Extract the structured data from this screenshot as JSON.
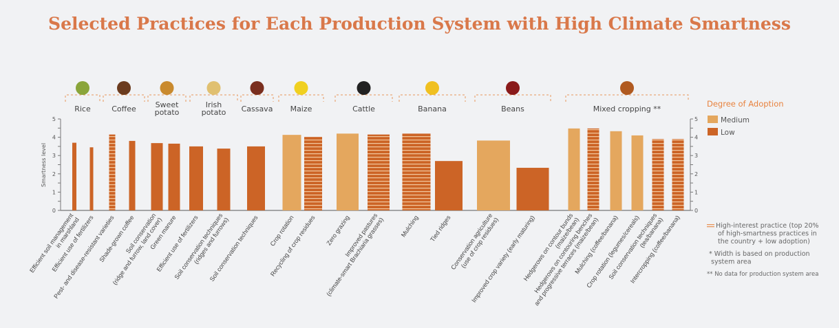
{
  "chart_data": {
    "type": "bar",
    "title": "Selected Practices for Each Production System with High Climate Smartness",
    "ylabel": "Smartness level",
    "ylim": [
      0,
      5
    ],
    "yticks": [
      "0",
      "1",
      "2",
      "3",
      "4",
      "5"
    ],
    "colors": {
      "Medium": "#e4a75e",
      "Low": "#cc6426",
      "stripe": "#f3c9a0",
      "title": "#d9784a"
    },
    "legend": {
      "title": "Degree of Adoption",
      "items": [
        "Medium",
        "Low"
      ],
      "placement": "right"
    },
    "notes": [
      "High-interest practice (top 20% of high-smartness practices in the country + low adoption)",
      "* Width is based on production system area",
      "** No data for production system area"
    ],
    "systems": [
      {
        "name": "Rice",
        "bars": [
          {
            "label": "Efficient soil management\nin marshland",
            "value": 3.7,
            "adoption": "Low",
            "high_interest": false
          },
          {
            "label": "Efficient use of fertilizers",
            "value": 3.45,
            "adoption": "Low",
            "high_interest": false
          }
        ]
      },
      {
        "name": "Coffee",
        "bars": [
          {
            "label": "Pest- and disease-resistant varieties",
            "value": 4.15,
            "adoption": "Low",
            "high_interest": true
          },
          {
            "label": "Shade-grown coffee",
            "value": 3.8,
            "adoption": "Low",
            "high_interest": false
          }
        ]
      },
      {
        "name": "Sweet potato",
        "bars": [
          {
            "label": "Soil conservation\n(ridge and furrow, land cover)",
            "value": 3.68,
            "adoption": "Low",
            "high_interest": false
          },
          {
            "label": "Green manure",
            "value": 3.65,
            "adoption": "Low",
            "high_interest": false
          }
        ]
      },
      {
        "name": "Irish potato",
        "bars": [
          {
            "label": "Efficient use of fertilizers",
            "value": 3.5,
            "adoption": "Low",
            "high_interest": false
          },
          {
            "label": "Soil conservation techniques\n(ridges and furrows)",
            "value": 3.38,
            "adoption": "Low",
            "high_interest": false
          }
        ]
      },
      {
        "name": "Cassava",
        "bars": [
          {
            "label": "Soil conservation techniques",
            "value": 3.5,
            "adoption": "Low",
            "high_interest": false
          }
        ]
      },
      {
        "name": "Maize",
        "bars": [
          {
            "label": "Crop rotation",
            "value": 4.13,
            "adoption": "Medium",
            "high_interest": false
          },
          {
            "label": "Recycling of crop residues",
            "value": 4.02,
            "adoption": "Low",
            "high_interest": true
          }
        ]
      },
      {
        "name": "Cattle",
        "bars": [
          {
            "label": "Zero grazing",
            "value": 4.2,
            "adoption": "Medium",
            "high_interest": false
          },
          {
            "label": "Improved pastures\n(climate-smart Brachiaria grasses)",
            "value": 4.15,
            "adoption": "Low",
            "high_interest": true
          }
        ]
      },
      {
        "name": "Banana",
        "bars": [
          {
            "label": "Mulching",
            "value": 4.2,
            "adoption": "Low",
            "high_interest": true
          },
          {
            "label": "Tied ridges",
            "value": 2.7,
            "adoption": "Low",
            "high_interest": false
          }
        ]
      },
      {
        "name": "Beans",
        "bars": [
          {
            "label": "Conservation agriculture\n(use of crop residues)",
            "value": 3.82,
            "adoption": "Medium",
            "high_interest": false
          },
          {
            "label": "Improved crop variety (early maturing)",
            "value": 2.33,
            "adoption": "Low",
            "high_interest": false
          }
        ]
      },
      {
        "name": "Mixed cropping **",
        "bars": [
          {
            "label": "Hedgerows on contour bunds\n(maize/bean)",
            "value": 4.48,
            "adoption": "Medium",
            "high_interest": false
          },
          {
            "label": "Hedgerows on contouring benches\nand progressive terraces (maize/bean)",
            "value": 4.48,
            "adoption": "Low",
            "high_interest": true
          },
          {
            "label": "Mulching (coffee/banana)",
            "value": 4.33,
            "adoption": "Medium",
            "high_interest": false
          },
          {
            "label": "Crop rotation (legumes/cereals)",
            "value": 4.1,
            "adoption": "Medium",
            "high_interest": false
          },
          {
            "label": "Soil conservation techniques\n(tea/banana)",
            "value": 3.9,
            "adoption": "Low",
            "high_interest": true
          },
          {
            "label": "Intercropping (coffee/banana)",
            "value": 3.9,
            "adoption": "Low",
            "high_interest": true
          }
        ]
      }
    ]
  }
}
